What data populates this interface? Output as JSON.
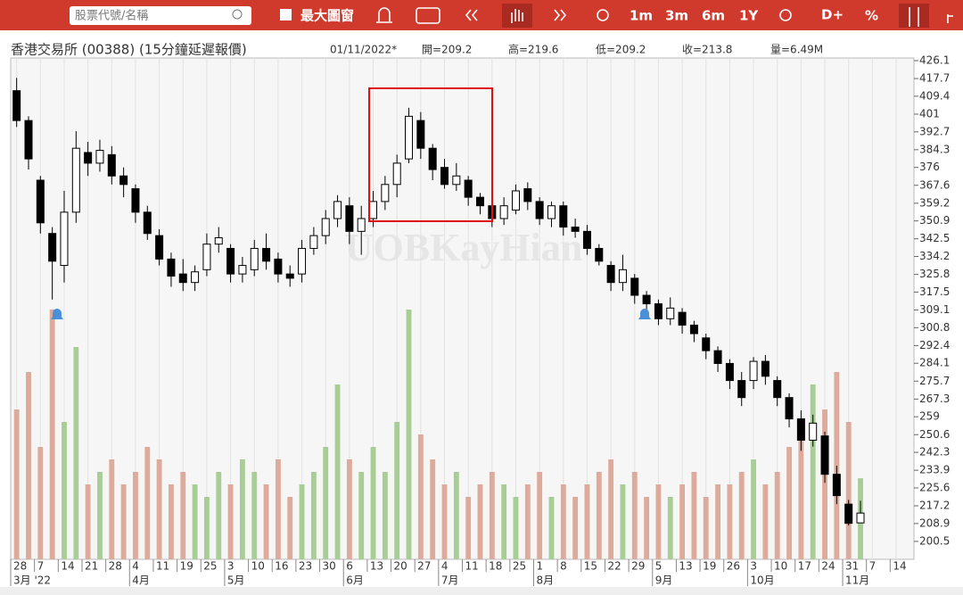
{
  "toolbar": {
    "search_placeholder": "股票代號/名稱",
    "max_window": "最大圖窗",
    "ranges": [
      "1m",
      "3m",
      "6m",
      "1Y"
    ],
    "d_plus": "D+",
    "percent": "%"
  },
  "quote": {
    "name": "香港交易所 (00388) (15分鐘延遲報價)",
    "date": "01/11/2022*",
    "open": "開=209.2",
    "high": "高=219.6",
    "low": "低=209.2",
    "close": "收=213.8",
    "volume": "量=6.49M"
  },
  "chart_data": {
    "type": "candlestick",
    "watermark": "UOBKayHian",
    "categories": [
      "28",
      null,
      "7",
      null,
      "14",
      null,
      "21",
      null,
      "28",
      null,
      "4",
      null,
      "11",
      null,
      "19",
      null,
      "25",
      null,
      "3",
      null,
      "10",
      null,
      "16",
      null,
      "23",
      null,
      "30",
      null,
      "6",
      null,
      "13",
      null,
      "20",
      null,
      "27",
      null,
      "4",
      null,
      "11",
      null,
      "18",
      null,
      "25",
      null,
      "1",
      null,
      "8",
      null,
      "15",
      null,
      "22",
      null,
      "29",
      null,
      "5",
      null,
      "13",
      null,
      "19",
      null,
      "26",
      null,
      "3",
      null,
      "10",
      null,
      "17",
      null,
      "24",
      null,
      "31",
      null,
      "7",
      null,
      "14",
      null
    ],
    "months": [
      "3月 '22",
      null,
      null,
      null,
      null,
      null,
      null,
      null,
      null,
      null,
      "4月",
      null,
      null,
      null,
      null,
      null,
      null,
      null,
      "5月",
      null,
      null,
      null,
      null,
      null,
      null,
      null,
      null,
      null,
      "6月",
      null,
      null,
      null,
      null,
      null,
      null,
      null,
      "7月",
      null,
      null,
      null,
      null,
      null,
      null,
      null,
      "8月",
      null,
      null,
      null,
      null,
      null,
      null,
      null,
      null,
      null,
      "9月",
      null,
      null,
      null,
      null,
      null,
      null,
      null,
      "10月",
      null,
      null,
      null,
      null,
      null,
      null,
      null,
      "11月",
      null,
      null,
      null,
      null,
      null
    ],
    "open": [
      412,
      398,
      370,
      345,
      330,
      355,
      383,
      378,
      382,
      372,
      366,
      355,
      344,
      333,
      326,
      322,
      328,
      340,
      338,
      326,
      328,
      338,
      333,
      326,
      326,
      338,
      344,
      352,
      358,
      346,
      352,
      360,
      368,
      380,
      398,
      385,
      376,
      368,
      370,
      362,
      358,
      352,
      356,
      366,
      360,
      352,
      358,
      348,
      346,
      338,
      330,
      322,
      324,
      316,
      312,
      305,
      308,
      302,
      296,
      290,
      284,
      276,
      276,
      285,
      276,
      268,
      258,
      248,
      250,
      232,
      218,
      209.2,
      null,
      null,
      null,
      null
    ],
    "high": [
      418,
      400,
      372,
      348,
      365,
      393,
      388,
      389,
      386,
      376,
      368,
      358,
      347,
      336,
      333,
      330,
      345,
      348,
      340,
      334,
      342,
      345,
      336,
      330,
      342,
      348,
      356,
      363,
      362,
      358,
      365,
      372,
      382,
      404,
      402,
      387,
      380,
      378,
      372,
      364,
      360,
      362,
      368,
      369,
      362,
      360,
      360,
      352,
      349,
      340,
      332,
      335,
      326,
      318,
      314,
      315,
      310,
      304,
      298,
      292,
      286,
      280,
      287,
      288,
      278,
      270,
      262,
      260,
      252,
      236,
      220,
      219.6,
      null,
      null,
      null,
      null
    ],
    "low": [
      395,
      375,
      345,
      314,
      322,
      350,
      372,
      374,
      368,
      362,
      350,
      342,
      330,
      320,
      318,
      318,
      325,
      336,
      322,
      322,
      325,
      328,
      322,
      320,
      322,
      335,
      340,
      348,
      340,
      335,
      348,
      356,
      362,
      378,
      380,
      370,
      366,
      365,
      358,
      354,
      348,
      349,
      354,
      356,
      349,
      348,
      344,
      343,
      335,
      330,
      318,
      318,
      312,
      308,
      302,
      302,
      298,
      294,
      286,
      280,
      272,
      264,
      272,
      274,
      264,
      254,
      243,
      245,
      228,
      218,
      208,
      209.2,
      null,
      null,
      null,
      null
    ],
    "close": [
      398,
      380,
      350,
      332,
      355,
      385,
      378,
      384,
      372,
      368,
      355,
      345,
      333,
      325,
      322,
      327,
      340,
      343,
      326,
      330,
      338,
      332,
      326,
      324,
      338,
      344,
      352,
      360,
      346,
      352,
      360,
      368,
      378,
      400,
      385,
      375,
      368,
      372,
      362,
      358,
      352,
      358,
      365,
      360,
      352,
      358,
      348,
      346,
      338,
      332,
      322,
      328,
      316,
      312,
      305,
      310,
      302,
      298,
      290,
      284,
      276,
      268,
      285,
      278,
      268,
      258,
      248,
      256,
      232,
      222,
      209,
      213.8,
      null,
      null,
      null,
      null
    ],
    "volume": [
      12,
      15,
      9,
      20,
      11,
      17,
      6,
      7,
      8,
      6,
      7,
      9,
      8,
      6,
      7,
      6,
      5,
      7,
      6,
      8,
      7,
      6,
      8,
      5,
      6,
      7,
      9,
      14,
      8,
      7,
      9,
      7,
      11,
      20,
      10,
      8,
      6,
      7,
      5,
      6,
      7,
      6,
      5,
      6,
      7,
      5,
      6,
      5,
      6,
      7,
      8,
      6,
      7,
      5,
      6,
      5,
      6,
      7,
      5,
      6,
      6,
      7,
      8,
      6,
      7,
      9,
      10,
      14,
      12,
      15,
      11,
      6.49,
      null,
      null,
      null,
      null
    ],
    "up_color": "#ffffff",
    "down_color": "#000000",
    "volume_up_color": "#a9cd96",
    "volume_down_color": "#dcab9c",
    "ylim": [
      192.1,
      426.1
    ],
    "yticks": [
      426.1,
      417.7,
      409.4,
      401,
      392.7,
      384.3,
      376,
      367.6,
      359.2,
      350.9,
      342.5,
      334.2,
      325.8,
      317.5,
      309.1,
      300.8,
      292.4,
      284.1,
      275.7,
      267.3,
      259,
      250.6,
      242.3,
      233.9,
      225.6,
      217.2,
      208.9,
      200.5
    ],
    "grid": true
  }
}
